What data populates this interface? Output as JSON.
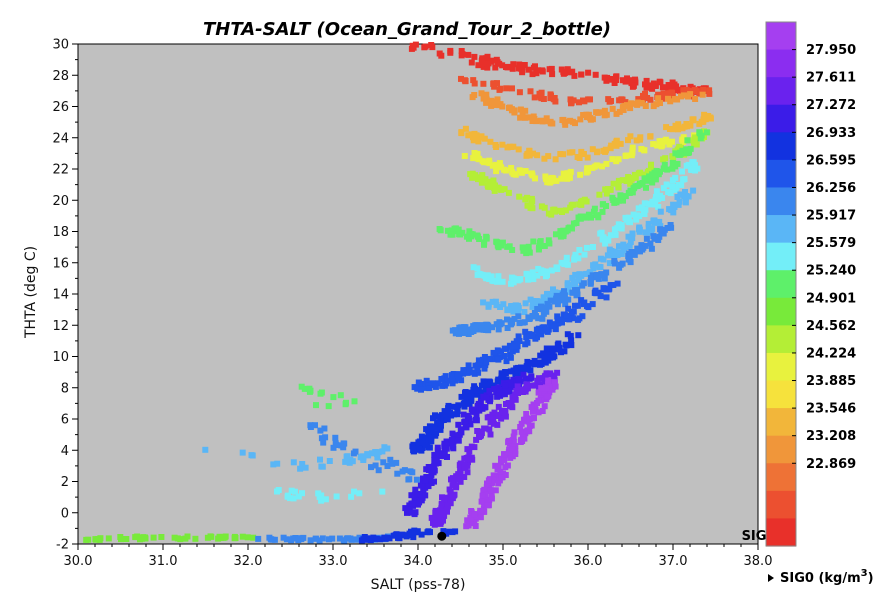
{
  "chart_data": {
    "type": "scatter",
    "title": "THTA-SALT (Ocean_Grand_Tour_2_bottle)",
    "xlabel": "SALT (pss-78)",
    "ylabel": "THTA (deg C)",
    "xlim": [
      30.0,
      38.0
    ],
    "ylim": [
      -2,
      30
    ],
    "x_ticks": [
      "30.0",
      "31.0",
      "32.0",
      "33.0",
      "34.0",
      "35.0",
      "36.0",
      "37.0",
      "38.0"
    ],
    "y_ticks": [
      "-2",
      "0",
      "2",
      "4",
      "6",
      "8",
      "10",
      "12",
      "14",
      "16",
      "18",
      "20",
      "22",
      "24",
      "26",
      "28",
      "30"
    ],
    "plot_background": "#c0c0c0",
    "grid": false,
    "marker": "square",
    "colorbar": {
      "variable": "SIG",
      "title": "SIG0 (kg/m3)",
      "title_text": "SIG0 (kg/m",
      "title_sup": "3",
      "title_tail": ")",
      "labels": [
        "27.950",
        "27.611",
        "27.272",
        "26.933",
        "26.595",
        "26.256",
        "25.917",
        "25.579",
        "25.240",
        "24.901",
        "24.562",
        "24.224",
        "23.885",
        "23.546",
        "23.208",
        "22.869"
      ],
      "colors": [
        "#a53ff0",
        "#8b2df0",
        "#6a22ee",
        "#3b1ce8",
        "#1232e0",
        "#1f55ea",
        "#3a86ee",
        "#5ab6f6",
        "#73eef8",
        "#5ef06a",
        "#78ea3a",
        "#b4ee36",
        "#e8f23e",
        "#f6e23c",
        "#f2b63a",
        "#f0963a",
        "#ee7236",
        "#ec5030",
        "#e8302a"
      ]
    },
    "highlight_point": {
      "x": 34.28,
      "y": -1.5,
      "color": "#000000"
    },
    "series_bands": [
      {
        "sigma": 22.9,
        "color": "#e8302a",
        "polyline": [
          [
            34.0,
            29.9
          ],
          [
            34.6,
            29.2
          ],
          [
            35.0,
            28.6
          ],
          [
            35.5,
            28.3
          ],
          [
            36.0,
            28.0
          ],
          [
            36.5,
            27.6
          ],
          [
            37.0,
            27.2
          ],
          [
            37.3,
            27.0
          ]
        ],
        "spread": [
          0.35,
          0.5
        ],
        "count": 140
      },
      {
        "sigma": 23.5,
        "color": "#ec5030",
        "polyline": [
          [
            34.5,
            27.8
          ],
          [
            35.0,
            27.2
          ],
          [
            35.5,
            26.6
          ],
          [
            36.0,
            26.2
          ],
          [
            36.5,
            26.5
          ],
          [
            37.0,
            26.8
          ],
          [
            37.4,
            26.9
          ]
        ],
        "spread": [
          0.12,
          0.45
        ],
        "count": 80
      },
      {
        "sigma": 23.9,
        "color": "#f0963a",
        "polyline": [
          [
            34.7,
            26.8
          ],
          [
            35.0,
            26.0
          ],
          [
            35.4,
            25.2
          ],
          [
            35.8,
            25.0
          ],
          [
            36.2,
            25.6
          ],
          [
            36.8,
            26.3
          ],
          [
            37.4,
            26.8
          ]
        ],
        "spread": [
          0.12,
          0.45
        ],
        "count": 95
      },
      {
        "sigma": 24.2,
        "color": "#f2b63a",
        "polyline": [
          [
            34.5,
            24.5
          ],
          [
            34.9,
            23.6
          ],
          [
            35.4,
            22.8
          ],
          [
            36.0,
            22.9
          ],
          [
            36.6,
            24.0
          ],
          [
            37.2,
            25.0
          ],
          [
            37.5,
            25.4
          ]
        ],
        "spread": [
          0.12,
          0.45
        ],
        "count": 90
      },
      {
        "sigma": 24.6,
        "color": "#e8f23e",
        "polyline": [
          [
            34.6,
            23.0
          ],
          [
            35.0,
            22.0
          ],
          [
            35.6,
            21.2
          ],
          [
            36.2,
            22.4
          ],
          [
            36.8,
            23.6
          ],
          [
            37.3,
            24.0
          ]
        ],
        "spread": [
          0.12,
          0.45
        ],
        "count": 90
      },
      {
        "sigma": 24.9,
        "color": "#b4ee36",
        "polyline": [
          [
            34.6,
            21.8
          ],
          [
            35.0,
            20.6
          ],
          [
            35.6,
            19.2
          ],
          [
            36.3,
            20.8
          ],
          [
            36.9,
            22.4
          ],
          [
            37.4,
            24.4
          ]
        ],
        "spread": [
          0.12,
          0.45
        ],
        "count": 110
      },
      {
        "sigma": 25.2,
        "color": "#5ef06a",
        "polyline": [
          [
            34.3,
            18.2
          ],
          [
            34.8,
            17.4
          ],
          [
            35.3,
            16.8
          ],
          [
            35.8,
            18.3
          ],
          [
            36.4,
            20.2
          ],
          [
            37.0,
            22.4
          ],
          [
            37.4,
            24.6
          ]
        ],
        "spread": [
          0.14,
          0.45
        ],
        "count": 150
      },
      {
        "sigma": 25.6,
        "color": "#73eef8",
        "polyline": [
          [
            34.6,
            15.6
          ],
          [
            35.0,
            14.6
          ],
          [
            35.6,
            15.6
          ],
          [
            36.2,
            17.6
          ],
          [
            36.8,
            20.0
          ],
          [
            37.3,
            22.5
          ]
        ],
        "spread": [
          0.16,
          0.45
        ],
        "count": 130
      },
      {
        "sigma": 25.9,
        "color": "#5ab6f6",
        "polyline": [
          [
            34.8,
            13.4
          ],
          [
            35.2,
            13.0
          ],
          [
            35.7,
            14.2
          ],
          [
            36.2,
            16.2
          ],
          [
            36.8,
            18.6
          ],
          [
            37.2,
            20.6
          ]
        ],
        "spread": [
          0.16,
          0.45
        ],
        "count": 130
      },
      {
        "sigma": 26.3,
        "color": "#3a86ee",
        "polyline": [
          [
            34.4,
            11.6
          ],
          [
            34.8,
            11.8
          ],
          [
            35.3,
            12.4
          ],
          [
            35.8,
            14.0
          ],
          [
            36.4,
            16.0
          ],
          [
            37.0,
            18.4
          ]
        ],
        "spread": [
          0.18,
          0.5
        ],
        "count": 150
      },
      {
        "sigma": 26.6,
        "color": "#1f55ea",
        "polyline": [
          [
            34.0,
            8.0
          ],
          [
            34.4,
            8.6
          ],
          [
            34.9,
            9.8
          ],
          [
            35.3,
            11.2
          ],
          [
            35.8,
            12.6
          ],
          [
            36.3,
            14.6
          ]
        ],
        "spread": [
          0.2,
          0.55
        ],
        "count": 170
      },
      {
        "sigma": 26.9,
        "color": "#1232e0",
        "polyline": [
          [
            34.0,
            4.0
          ],
          [
            34.2,
            5.6
          ],
          [
            34.6,
            7.4
          ],
          [
            35.0,
            8.6
          ],
          [
            35.4,
            9.6
          ],
          [
            35.8,
            11.2
          ]
        ],
        "spread": [
          0.2,
          0.55
        ],
        "count": 180
      },
      {
        "sigma": 27.3,
        "color": "#3b1ce8",
        "polyline": [
          [
            33.9,
            0.0
          ],
          [
            34.1,
            2.0
          ],
          [
            34.3,
            4.0
          ],
          [
            34.6,
            6.0
          ],
          [
            34.9,
            7.6
          ],
          [
            35.3,
            8.6
          ]
        ],
        "spread": [
          0.15,
          0.5
        ],
        "count": 180
      },
      {
        "sigma": 27.6,
        "color": "#6a22ee",
        "polyline": [
          [
            34.2,
            -0.8
          ],
          [
            34.4,
            1.5
          ],
          [
            34.6,
            3.8
          ],
          [
            34.9,
            6.0
          ],
          [
            35.2,
            7.8
          ],
          [
            35.6,
            8.8
          ]
        ],
        "spread": [
          0.15,
          0.45
        ],
        "count": 160
      },
      {
        "sigma": 27.9,
        "color": "#a53ff0",
        "polyline": [
          [
            34.6,
            -0.8
          ],
          [
            34.8,
            1.0
          ],
          [
            35.0,
            3.0
          ],
          [
            35.2,
            5.0
          ],
          [
            35.4,
            6.8
          ],
          [
            35.6,
            8.4
          ]
        ],
        "spread": [
          0.16,
          0.4
        ],
        "count": 160
      },
      {
        "sigma": 26.0,
        "color": "#5ab6f6",
        "polyline": [
          [
            31.2,
            4.4
          ],
          [
            32.6,
            3.0
          ],
          [
            33.2,
            3.4
          ],
          [
            33.6,
            4.0
          ]
        ],
        "spread": [
          0.25,
          0.5
        ],
        "count": 35
      },
      {
        "sigma": 26.5,
        "color": "#3a86ee",
        "polyline": [
          [
            32.6,
            6.0
          ],
          [
            33.0,
            4.5
          ],
          [
            33.6,
            3.0
          ],
          [
            34.0,
            2.2
          ]
        ],
        "spread": [
          0.25,
          0.6
        ],
        "count": 35
      },
      {
        "sigma": 25.4,
        "color": "#78ea3a",
        "polyline": [
          [
            30.0,
            -1.7
          ],
          [
            30.8,
            -1.6
          ],
          [
            31.6,
            -1.6
          ],
          [
            32.0,
            -1.6
          ]
        ],
        "spread": [
          0.35,
          0.18
        ],
        "count": 45
      },
      {
        "sigma": 26.3,
        "color": "#3a86ee",
        "polyline": [
          [
            32.0,
            -1.6
          ],
          [
            32.6,
            -1.7
          ],
          [
            33.2,
            -1.7
          ],
          [
            33.6,
            -1.6
          ]
        ],
        "spread": [
          0.3,
          0.18
        ],
        "count": 40
      },
      {
        "sigma": 26.9,
        "color": "#1232e0",
        "polyline": [
          [
            33.4,
            -1.7
          ],
          [
            33.8,
            -1.5
          ],
          [
            34.1,
            -1.2
          ],
          [
            34.4,
            -1.3
          ]
        ],
        "spread": [
          0.25,
          0.25
        ],
        "count": 45
      },
      {
        "sigma": 25.6,
        "color": "#73eef8",
        "polyline": [
          [
            32.3,
            1.4
          ],
          [
            32.8,
            1.0
          ],
          [
            33.5,
            1.2
          ]
        ],
        "spread": [
          0.3,
          0.5
        ],
        "count": 20
      },
      {
        "sigma": 25.2,
        "color": "#5ef06a",
        "polyline": [
          [
            32.6,
            8.0
          ],
          [
            33.2,
            7.0
          ],
          [
            32.8,
            6.6
          ]
        ],
        "spread": [
          0.2,
          0.5
        ],
        "count": 14
      }
    ]
  }
}
